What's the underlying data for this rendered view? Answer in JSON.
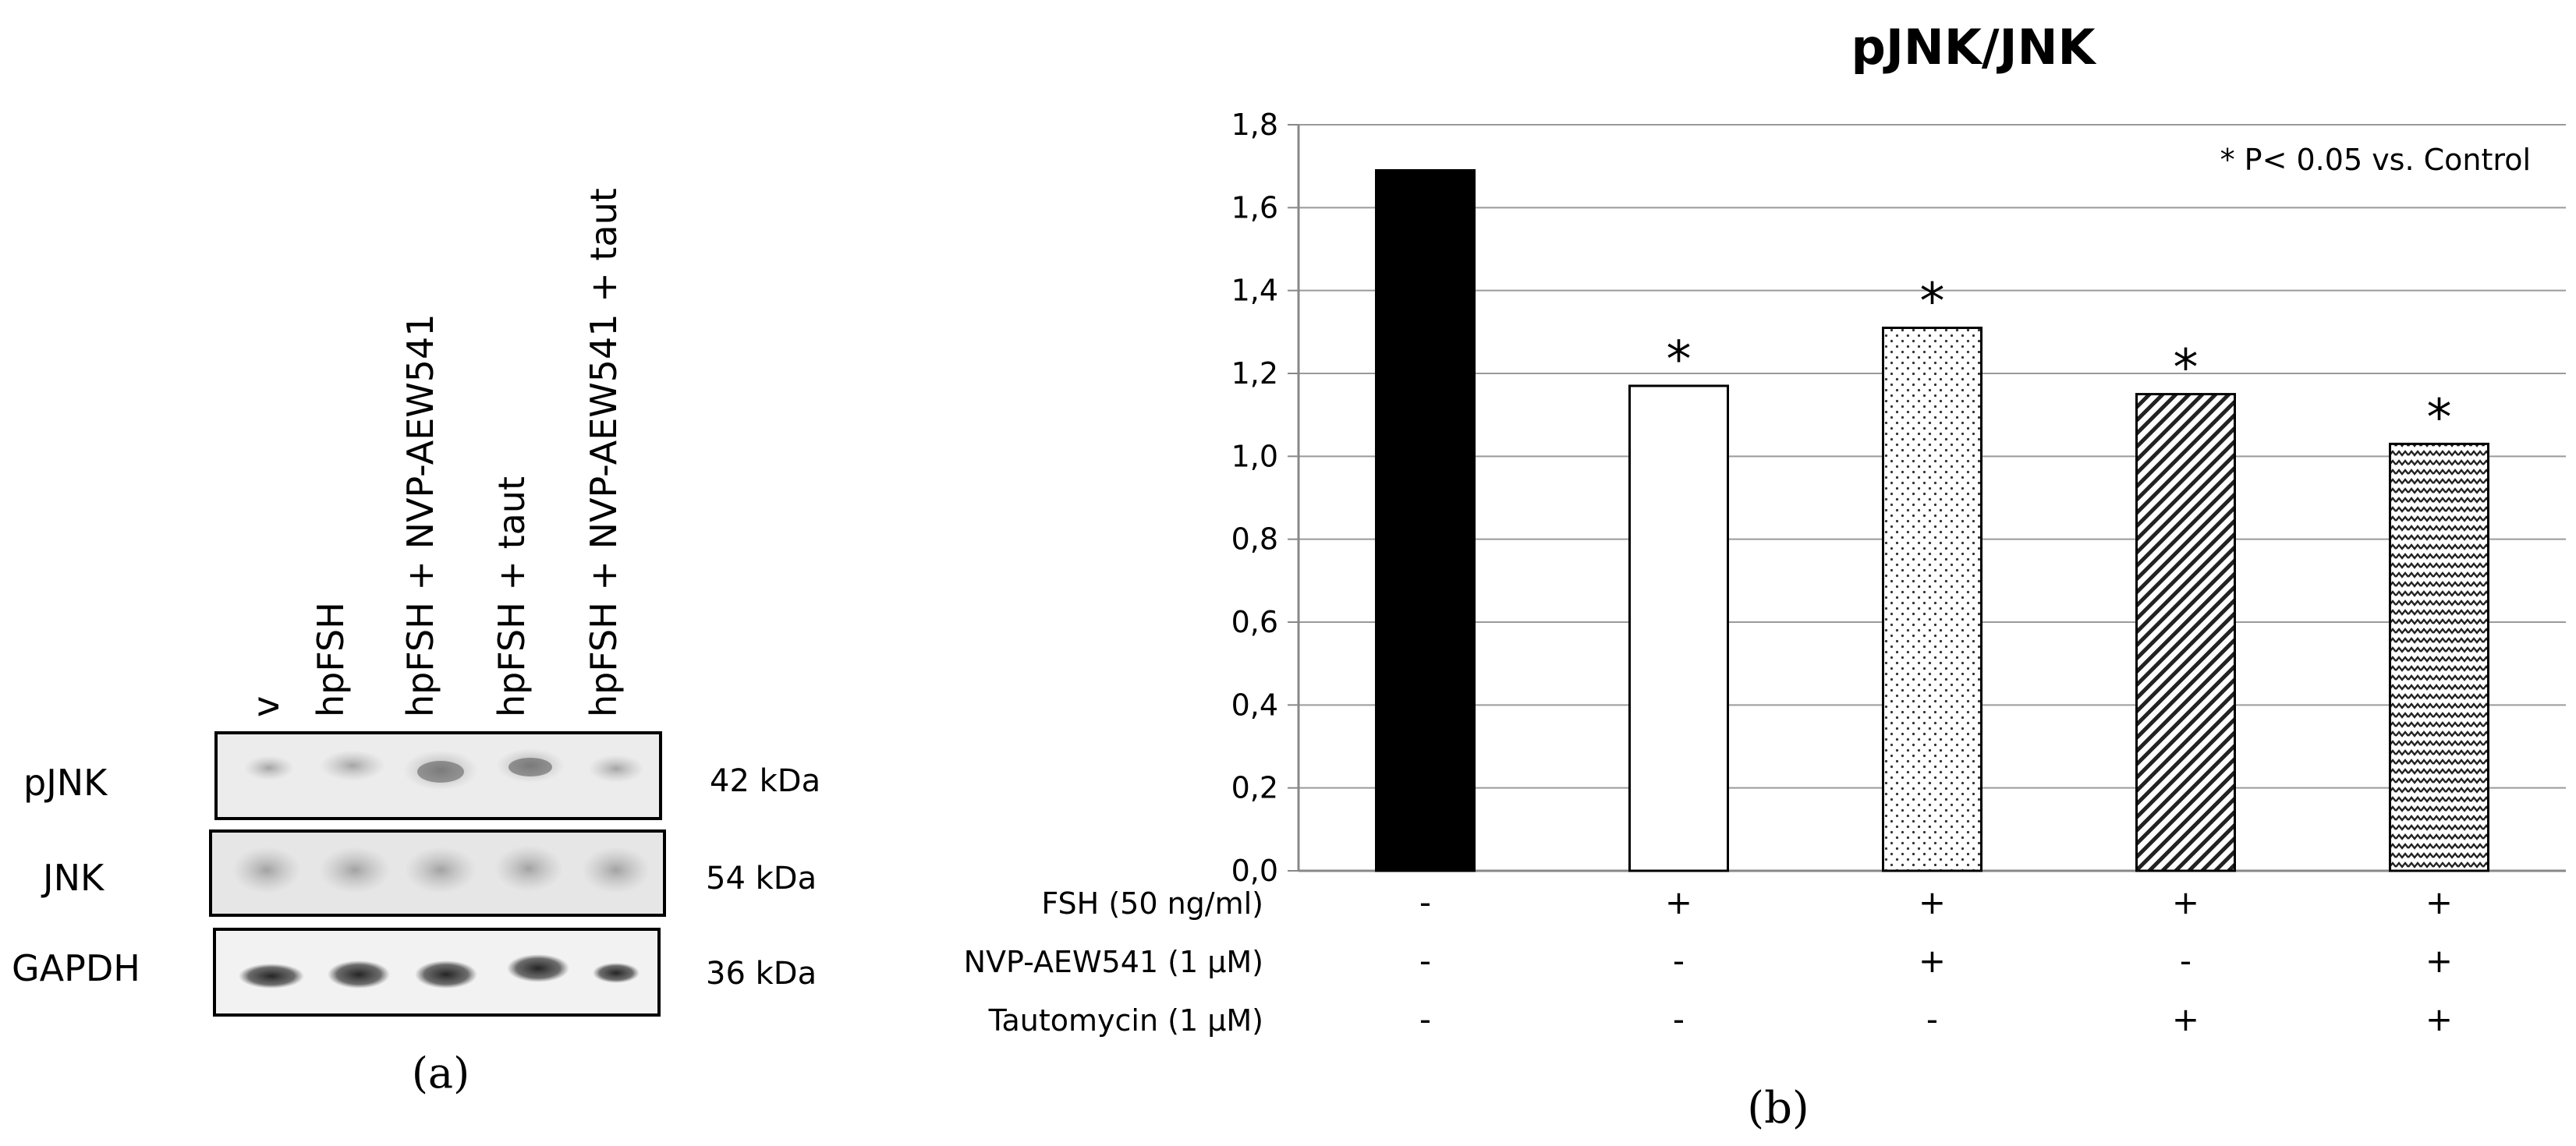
{
  "panel_a": {
    "caption": "(a)",
    "lanes": [
      "v",
      "hpFSH",
      "hpFSH + NVP-AEW541",
      "hpFSH + taut",
      "hpFSH + NVP-AEW541 + taut"
    ],
    "blots": [
      {
        "name": "pJNK",
        "kda": "42 kDa"
      },
      {
        "name": "JNK",
        "kda": "54 kDa"
      },
      {
        "name": "GAPDH",
        "kda": "36 kDa"
      }
    ]
  },
  "chart_data": {
    "type": "bar",
    "title": "pJNK/JNK",
    "annotation": "* P< 0.05 vs. Control",
    "categories": [
      "Control",
      "FSH",
      "FSH + NVP-AEW541",
      "FSH + Tautomycin",
      "FSH + NVP-AEW541 + Tautomycin"
    ],
    "values": [
      1.69,
      1.17,
      1.31,
      1.15,
      1.03
    ],
    "significant": [
      false,
      true,
      true,
      true,
      true
    ],
    "significance_marker": "*",
    "bar_fills": [
      "solid-black",
      "white",
      "dots",
      "diagonal-lines",
      "zigzag"
    ],
    "ylim": [
      0,
      1.8
    ],
    "yticks": [
      "0,0",
      "0,2",
      "0,4",
      "0,6",
      "0,8",
      "1,0",
      "1,2",
      "1,4",
      "1,6",
      "1,8"
    ],
    "grid": true,
    "treatments": [
      {
        "label": "FSH (50 ng/ml)",
        "values": [
          "-",
          "+",
          "+",
          "+",
          "+"
        ]
      },
      {
        "label": "NVP-AEW541 (1 μM)",
        "values": [
          "-",
          "-",
          "+",
          "-",
          "+"
        ]
      },
      {
        "label": "Tautomycin (1 μM)",
        "values": [
          "-",
          "-",
          "-",
          "+",
          "+"
        ]
      }
    ]
  },
  "panel_b": {
    "caption": "(b)"
  }
}
